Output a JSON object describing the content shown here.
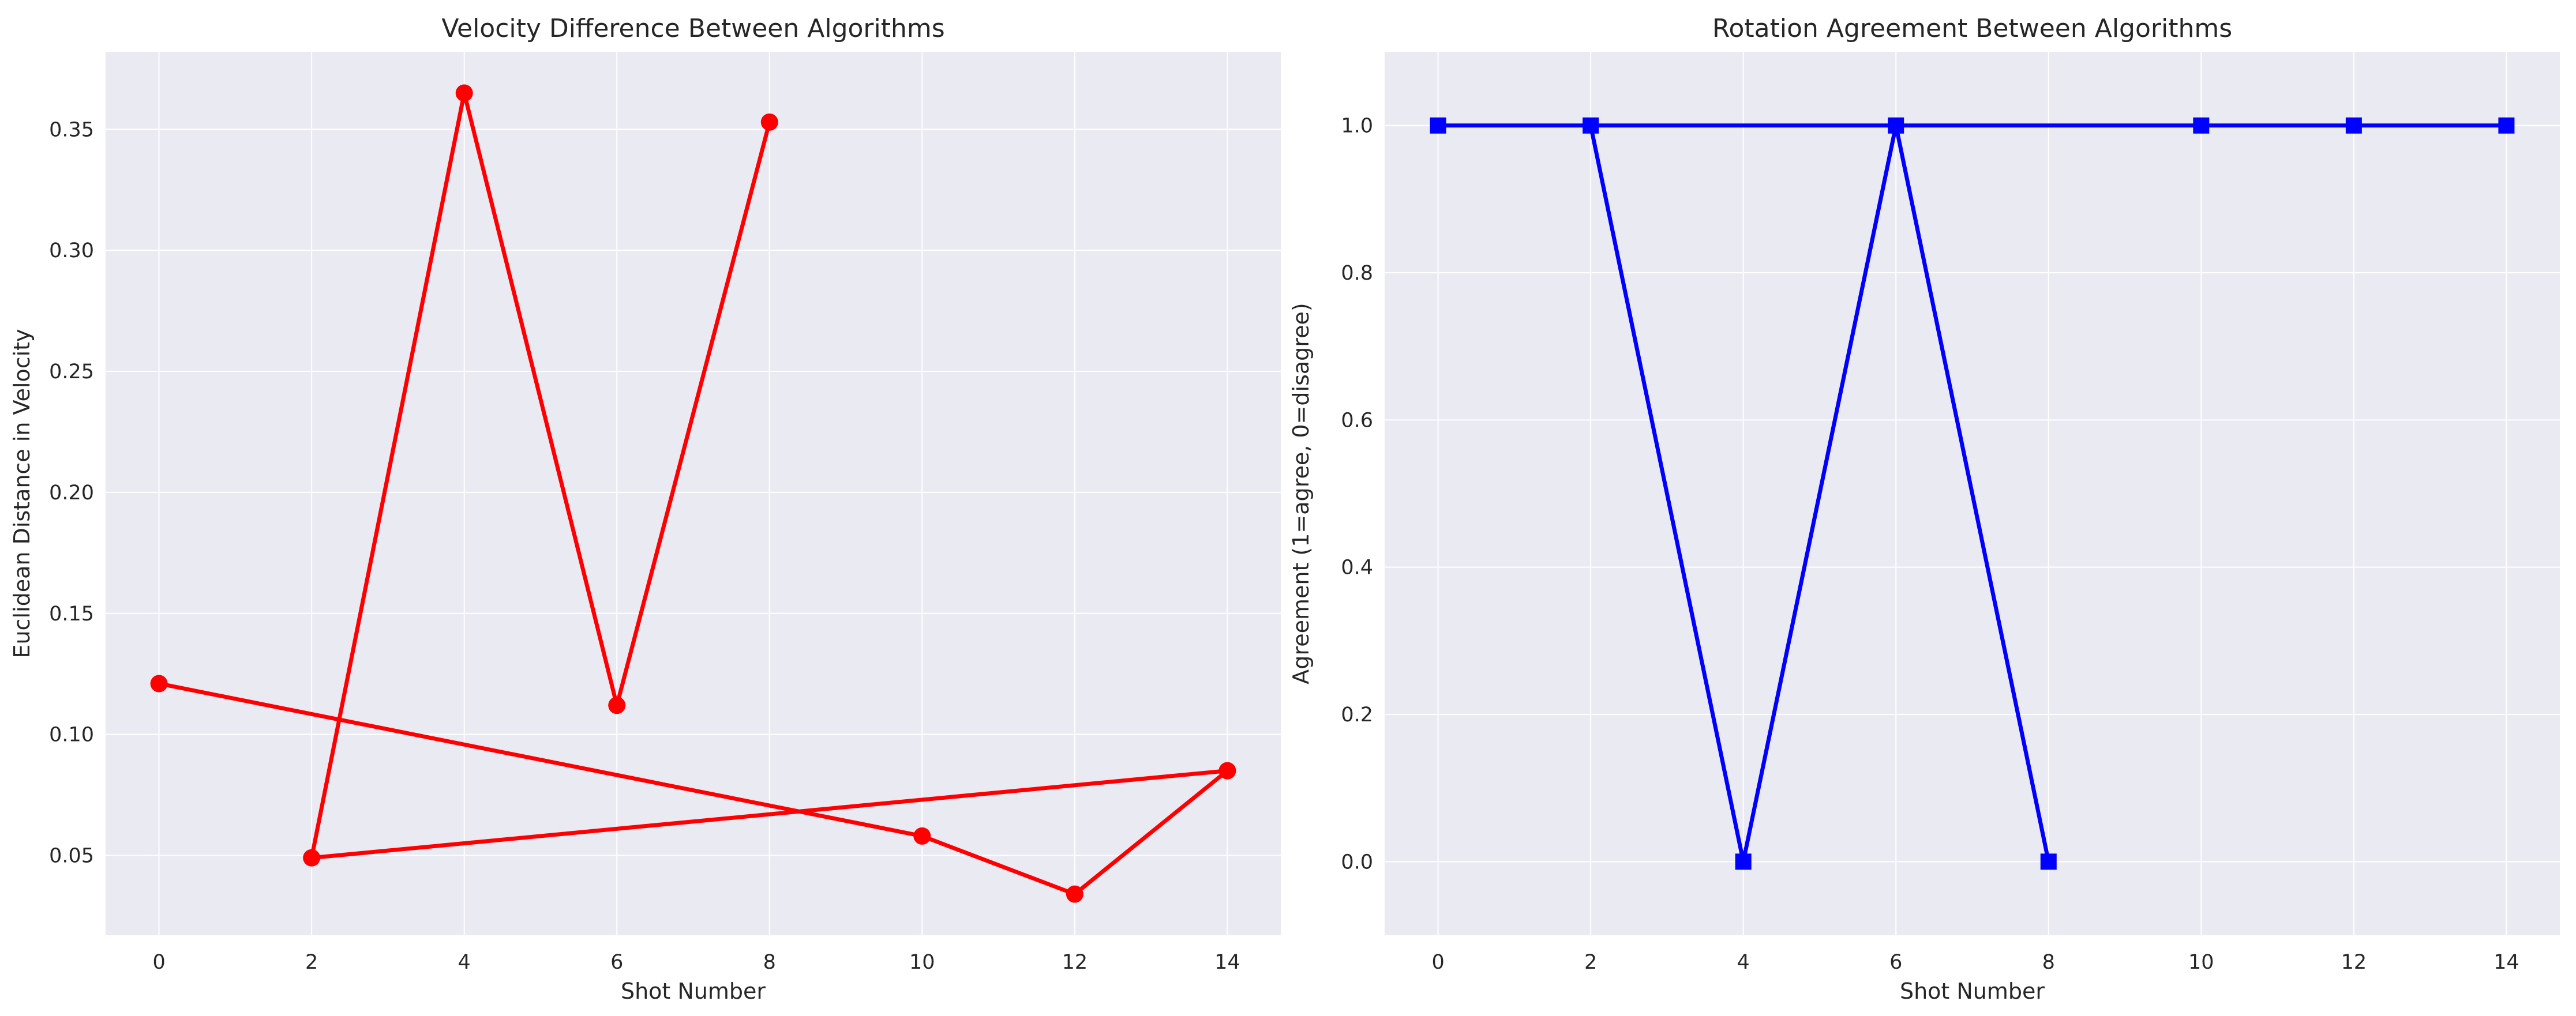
{
  "colors": {
    "background": "#ffffff",
    "plot_background": "#eaeaf2",
    "grid": "#ffffff",
    "left_series": "#ff0000",
    "right_series": "#0000ff",
    "text": "#262626"
  },
  "chart_data": [
    {
      "type": "line",
      "title": "Velocity Difference Between Algorithms",
      "xlabel": "Shot Number",
      "ylabel": "Euclidean Distance in Velocity",
      "xlim": [
        -0.7,
        14.7
      ],
      "ylim": [
        0.017,
        0.382
      ],
      "xticks": [
        0,
        2,
        4,
        6,
        8,
        10,
        12,
        14
      ],
      "xtick_labels": [
        "0",
        "2",
        "4",
        "6",
        "8",
        "10",
        "12",
        "14"
      ],
      "yticks": [
        0.05,
        0.1,
        0.15,
        0.2,
        0.25,
        0.3,
        0.35
      ],
      "ytick_labels": [
        "0.05",
        "0.10",
        "0.15",
        "0.20",
        "0.25",
        "0.30",
        "0.35"
      ],
      "grid": true,
      "series": [
        {
          "color": "#ff0000",
          "marker": "circle",
          "x": [
            0,
            10,
            12,
            14,
            2,
            4,
            6,
            8
          ],
          "y": [
            0.121,
            0.058,
            0.034,
            0.085,
            0.049,
            0.365,
            0.112,
            0.353
          ]
        }
      ]
    },
    {
      "type": "line",
      "title": "Rotation Agreement Between Algorithms",
      "xlabel": "Shot Number",
      "ylabel": "Agreement (1=agree, 0=disagree)",
      "xlim": [
        -0.7,
        14.7
      ],
      "ylim": [
        -0.1,
        1.1
      ],
      "xticks": [
        0,
        2,
        4,
        6,
        8,
        10,
        12,
        14
      ],
      "xtick_labels": [
        "0",
        "2",
        "4",
        "6",
        "8",
        "10",
        "12",
        "14"
      ],
      "yticks": [
        0.0,
        0.2,
        0.4,
        0.6,
        0.8,
        1.0
      ],
      "ytick_labels": [
        "0.0",
        "0.2",
        "0.4",
        "0.6",
        "0.8",
        "1.0"
      ],
      "grid": true,
      "series": [
        {
          "color": "#0000ff",
          "marker": "square",
          "x": [
            0,
            10,
            12,
            14,
            2,
            4,
            6,
            8
          ],
          "y": [
            1,
            1,
            1,
            1,
            1,
            0,
            1,
            0
          ]
        }
      ]
    }
  ]
}
